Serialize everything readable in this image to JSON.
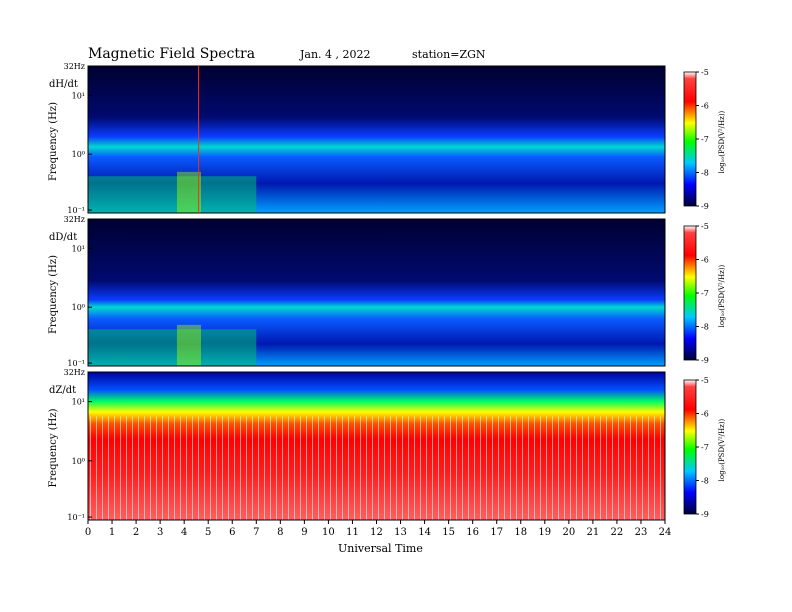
{
  "header": {
    "title": "Magnetic  Field  Spectra",
    "date": "Jan. 4 , 2022",
    "station": "station=ZGN"
  },
  "chart_data": {
    "type": "heatmap",
    "x_label": "Universal Time",
    "x_range": [
      0,
      24
    ],
    "x_ticks": [
      "0",
      "1",
      "2",
      "3",
      "4",
      "5",
      "6",
      "7",
      "8",
      "9",
      "10",
      "11",
      "12",
      "13",
      "14",
      "15",
      "16",
      "17",
      "18",
      "19",
      "20",
      "21",
      "22",
      "23",
      "24"
    ],
    "y_label": "Frequency  (Hz)",
    "y_scale": "log",
    "y_ticks": [
      "32Hz",
      "10¹",
      "10⁰",
      "10⁻¹"
    ],
    "colorbar": {
      "label": "log₁₀(PSD(V²/Hz))",
      "range": [
        -9,
        -5
      ],
      "ticks": [
        "-5",
        "-6",
        "-7",
        "-8",
        "-9"
      ],
      "stops": [
        "#ff0000",
        "#ffff00",
        "#00ff00",
        "#00c8ff",
        "#0000ff",
        "#000044"
      ]
    },
    "panels": [
      {
        "name": "dH/dt",
        "dominant_level": -8.3,
        "event_line_hour": 4.6
      },
      {
        "name": "dD/dt",
        "dominant_level": -8.3
      },
      {
        "name": "dZ/dt",
        "dominant_level": -5.5
      }
    ]
  }
}
